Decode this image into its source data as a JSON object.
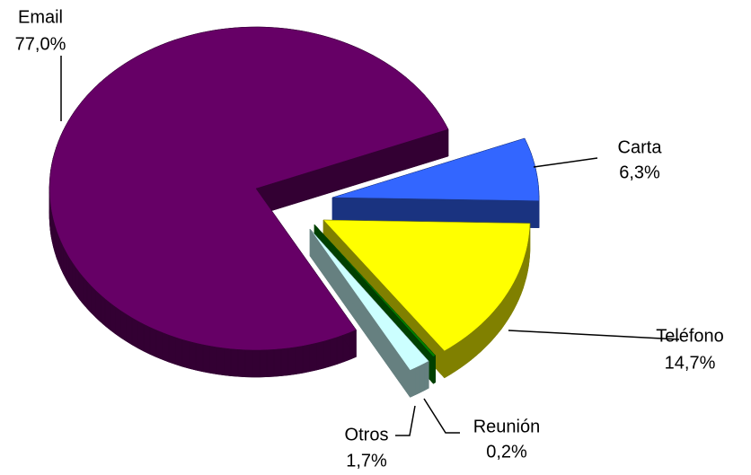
{
  "chart_data": {
    "type": "pie",
    "categories": [
      "Email",
      "Carta",
      "Teléfono",
      "Reunión",
      "Otros"
    ],
    "values": [
      77.0,
      6.3,
      14.7,
      0.2,
      1.7
    ],
    "value_labels": [
      "77,0%",
      "6,3%",
      "14,7%",
      "0,2%",
      "1,7%"
    ],
    "colors": [
      "#660066",
      "#3366ff",
      "#ffff00",
      "#008000",
      "#ccffff"
    ]
  }
}
